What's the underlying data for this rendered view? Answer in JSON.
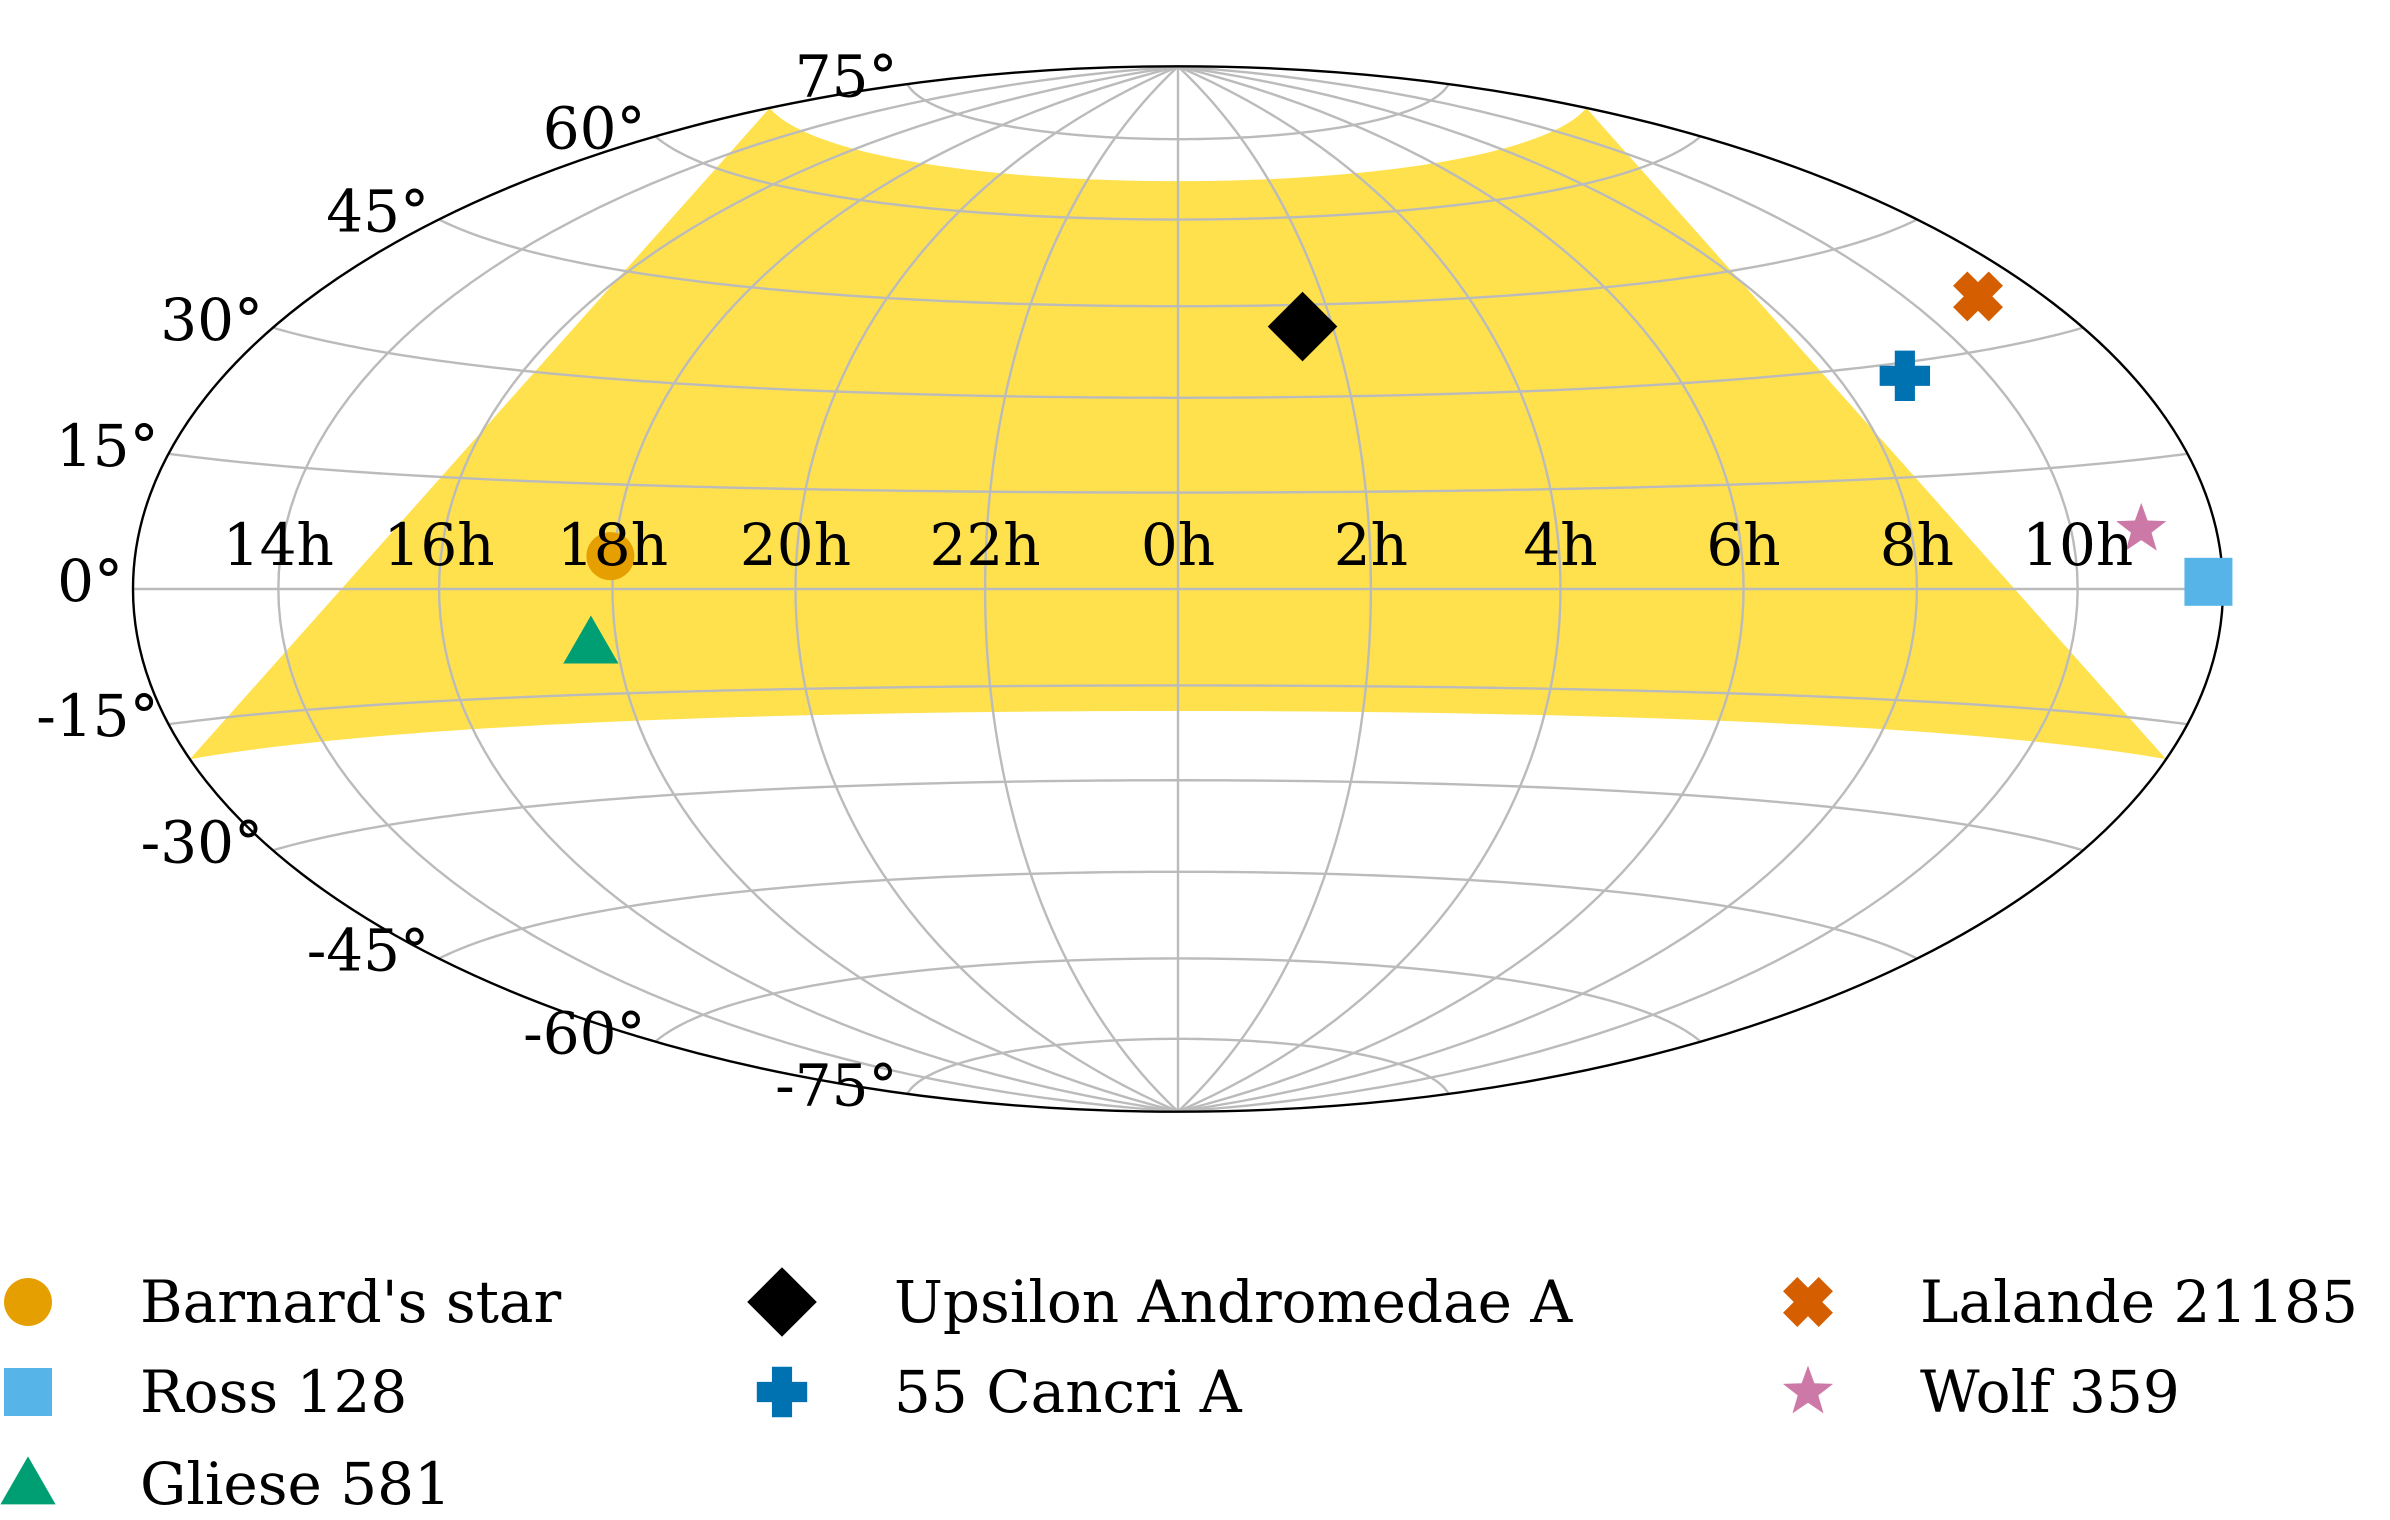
{
  "chart_data": {
    "type": "scatter",
    "projection": "aitoff-hammer",
    "x_axis": {
      "unit": "hour",
      "ticks": [
        {
          "lon": -150,
          "label": "14h"
        },
        {
          "lon": -120,
          "label": "16h"
        },
        {
          "lon": -90,
          "label": "18h"
        },
        {
          "lon": -60,
          "label": "20h"
        },
        {
          "lon": -30,
          "label": "22h"
        },
        {
          "lon": 0,
          "label": "0h"
        },
        {
          "lon": 30,
          "label": "2h"
        },
        {
          "lon": 60,
          "label": "4h"
        },
        {
          "lon": 90,
          "label": "6h"
        },
        {
          "lon": 120,
          "label": "8h"
        },
        {
          "lon": 150,
          "label": "10h"
        }
      ]
    },
    "y_axis": {
      "unit": "degree",
      "ticks": [
        {
          "lat": 75,
          "label": "75°"
        },
        {
          "lat": 60,
          "label": "60°"
        },
        {
          "lat": 45,
          "label": "45°"
        },
        {
          "lat": 30,
          "label": "30°"
        },
        {
          "lat": 15,
          "label": "15°"
        },
        {
          "lat": 0,
          "label": "0°"
        },
        {
          "lat": -15,
          "label": "-15°"
        },
        {
          "lat": -30,
          "label": "-30°"
        },
        {
          "lat": -45,
          "label": "-45°"
        },
        {
          "lat": -60,
          "label": "-60°"
        },
        {
          "lat": -75,
          "label": "-75°"
        }
      ]
    },
    "shaded_band": {
      "lat_min": -19,
      "lat_max": 67,
      "color": "#FFE14D"
    },
    "grid": true,
    "grid_color": "#BBBBBB",
    "legend_position": "bottom",
    "series": [
      {
        "name": "Barnard's star",
        "ra_hours": 17.96,
        "dec": 4.7,
        "marker": "circle",
        "color": "#E69F00"
      },
      {
        "name": "Ross 128",
        "ra_hours": 11.79,
        "dec": 0.8,
        "marker": "square",
        "color": "#56B4E9"
      },
      {
        "name": "Gliese 581",
        "ra_hours": 17.71,
        "dec": -7.7,
        "marker": "triangle",
        "color": "#009E73"
      },
      {
        "name": "Upsilon Andromedae A",
        "ra_hours": 1.61,
        "dec": 41.4,
        "marker": "diamond",
        "color": "#000000"
      },
      {
        "name": "55 Cancri A",
        "ra_hours": 8.88,
        "dec": 28.3,
        "marker": "plus",
        "color": "#0072B2"
      },
      {
        "name": "Lalande 21185",
        "ra_hours": 11.05,
        "dec": 35.97,
        "marker": "x",
        "color": "#D55E00"
      },
      {
        "name": "Wolf 359",
        "ra_hours": 10.94,
        "dec": 7.0,
        "marker": "star",
        "color": "#CC79A7"
      }
    ]
  }
}
